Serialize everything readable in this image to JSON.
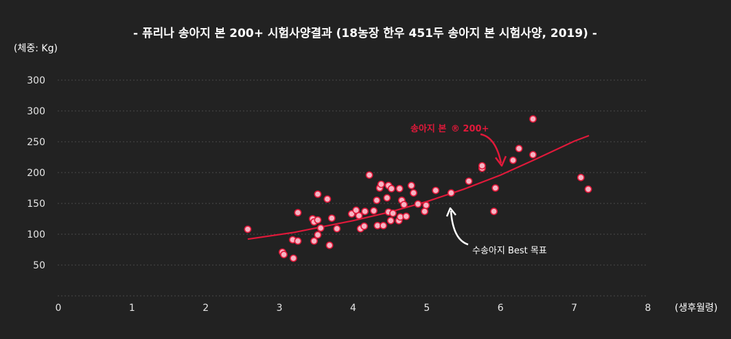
{
  "chart_data": {
    "type": "scatter",
    "title": "- 퓨리나 송아지 본 200+ 시험사양결과 (18농장 한우 451두 송아지 본 시험사양, 2019) -",
    "y_unit_label": "(체중: Kg)",
    "x_unit_label": "(생후월령)",
    "x_ticks": [
      "0",
      "1",
      "2",
      "3",
      "4",
      "5",
      "6",
      "7",
      "8"
    ],
    "y_ticks": [
      "50",
      "100",
      "150",
      "200",
      "250",
      "300",
      "300"
    ],
    "xlim": [
      0,
      8
    ],
    "ylim": [
      0,
      350
    ],
    "grid": true,
    "points": [
      {
        "x": 2.57,
        "y": 108
      },
      {
        "x": 3.04,
        "y": 71
      },
      {
        "x": 3.06,
        "y": 67
      },
      {
        "x": 3.18,
        "y": 91
      },
      {
        "x": 3.19,
        "y": 61
      },
      {
        "x": 3.25,
        "y": 89
      },
      {
        "x": 3.25,
        "y": 135
      },
      {
        "x": 3.45,
        "y": 125
      },
      {
        "x": 3.47,
        "y": 120
      },
      {
        "x": 3.47,
        "y": 89
      },
      {
        "x": 3.52,
        "y": 123
      },
      {
        "x": 3.52,
        "y": 99
      },
      {
        "x": 3.52,
        "y": 165
      },
      {
        "x": 3.56,
        "y": 110
      },
      {
        "x": 3.65,
        "y": 157
      },
      {
        "x": 3.68,
        "y": 82
      },
      {
        "x": 3.71,
        "y": 126
      },
      {
        "x": 3.78,
        "y": 109
      },
      {
        "x": 3.98,
        "y": 133
      },
      {
        "x": 4.04,
        "y": 139
      },
      {
        "x": 4.08,
        "y": 130
      },
      {
        "x": 4.1,
        "y": 109
      },
      {
        "x": 4.15,
        "y": 113
      },
      {
        "x": 4.16,
        "y": 137
      },
      {
        "x": 4.22,
        "y": 196
      },
      {
        "x": 4.28,
        "y": 138
      },
      {
        "x": 4.32,
        "y": 155
      },
      {
        "x": 4.33,
        "y": 114
      },
      {
        "x": 4.36,
        "y": 175
      },
      {
        "x": 4.38,
        "y": 181
      },
      {
        "x": 4.41,
        "y": 114
      },
      {
        "x": 4.46,
        "y": 159
      },
      {
        "x": 4.48,
        "y": 136
      },
      {
        "x": 4.48,
        "y": 179
      },
      {
        "x": 4.51,
        "y": 122
      },
      {
        "x": 4.52,
        "y": 174
      },
      {
        "x": 4.54,
        "y": 134
      },
      {
        "x": 4.62,
        "y": 122
      },
      {
        "x": 4.63,
        "y": 174
      },
      {
        "x": 4.64,
        "y": 128
      },
      {
        "x": 4.66,
        "y": 155
      },
      {
        "x": 4.69,
        "y": 148
      },
      {
        "x": 4.72,
        "y": 129
      },
      {
        "x": 4.79,
        "y": 179
      },
      {
        "x": 4.82,
        "y": 167
      },
      {
        "x": 4.88,
        "y": 149
      },
      {
        "x": 4.97,
        "y": 137
      },
      {
        "x": 4.99,
        "y": 147
      },
      {
        "x": 5.12,
        "y": 171
      },
      {
        "x": 5.33,
        "y": 167
      },
      {
        "x": 5.57,
        "y": 186
      },
      {
        "x": 5.75,
        "y": 207
      },
      {
        "x": 5.75,
        "y": 211
      },
      {
        "x": 5.91,
        "y": 137
      },
      {
        "x": 5.93,
        "y": 175
      },
      {
        "x": 6.17,
        "y": 220
      },
      {
        "x": 6.25,
        "y": 239
      },
      {
        "x": 6.44,
        "y": 287
      },
      {
        "x": 6.44,
        "y": 229
      },
      {
        "x": 7.09,
        "y": 192
      },
      {
        "x": 7.19,
        "y": 173
      }
    ],
    "series": [
      {
        "name": "송아지 본 200+",
        "color": "#e0193a",
        "x": [
          2.57,
          3.2,
          4.0,
          4.5,
          5.0,
          5.5,
          6.0,
          6.5,
          7.0,
          7.2
        ],
        "y": [
          92,
          103,
          122,
          136,
          153,
          173,
          196,
          223,
          251,
          260
        ]
      }
    ],
    "annotations": [
      {
        "label": "송아지 본",
        "sup": "® 200+",
        "color": "#e0193a"
      },
      {
        "label": "수송아지 Best 목표",
        "color": "#ffffff"
      }
    ]
  }
}
